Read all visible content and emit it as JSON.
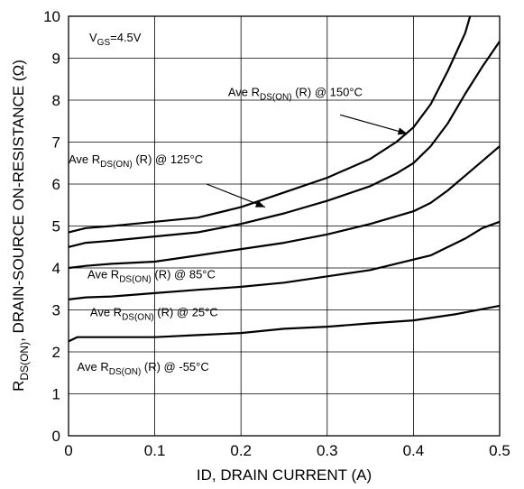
{
  "chart_data": {
    "type": "line",
    "xlabel": "ID, DRAIN CURRENT (A)",
    "ylabel": {
      "prefix": "R",
      "sub": "DS(ON)",
      "rest": ", DRAIN-SOURCE ON-RESISTANCE (Ω)"
    },
    "xlim": [
      0,
      0.5
    ],
    "ylim": [
      0,
      10
    ],
    "xticks": [
      "0",
      "0.1",
      "0.2",
      "0.3",
      "0.4",
      "0.5"
    ],
    "yticks": [
      "0",
      "1",
      "2",
      "3",
      "4",
      "5",
      "6",
      "7",
      "8",
      "9",
      "10"
    ],
    "grid": true,
    "condition": {
      "main": "V",
      "sub": "GS",
      "rest": "=4.5V"
    },
    "series": [
      {
        "name": "Ave RDS(ON) (R) @ 150°C",
        "label": {
          "pre": "Ave R",
          "sub": "DS(ON)",
          "post": " (R) @ 150°C"
        },
        "x": [
          0,
          0.02,
          0.05,
          0.1,
          0.15,
          0.2,
          0.25,
          0.3,
          0.35,
          0.38,
          0.4,
          0.42,
          0.44,
          0.46,
          0.47
        ],
        "y": [
          4.85,
          4.95,
          5.0,
          5.1,
          5.2,
          5.45,
          5.8,
          6.15,
          6.6,
          7.0,
          7.35,
          7.9,
          8.7,
          9.6,
          10.3
        ]
      },
      {
        "name": "Ave RDS(ON) (R) @ 125°C",
        "label": {
          "pre": "Ave R",
          "sub": "DS(ON)",
          "post": " (R) @ 125°C"
        },
        "x": [
          0,
          0.02,
          0.05,
          0.1,
          0.15,
          0.2,
          0.25,
          0.3,
          0.35,
          0.38,
          0.4,
          0.42,
          0.44,
          0.46,
          0.48,
          0.5
        ],
        "y": [
          4.5,
          4.6,
          4.65,
          4.75,
          4.85,
          5.05,
          5.3,
          5.6,
          5.95,
          6.25,
          6.5,
          6.9,
          7.45,
          8.15,
          8.8,
          9.4
        ]
      },
      {
        "name": "Ave RDS(ON) (R) @ 85°C",
        "label": {
          "pre": "Ave R",
          "sub": "DS(ON)",
          "post": " (R) @ 85°C"
        },
        "x": [
          0,
          0.02,
          0.05,
          0.1,
          0.15,
          0.2,
          0.25,
          0.3,
          0.35,
          0.4,
          0.42,
          0.44,
          0.46,
          0.48,
          0.5
        ],
        "y": [
          4.0,
          4.05,
          4.1,
          4.15,
          4.3,
          4.45,
          4.6,
          4.8,
          5.05,
          5.35,
          5.55,
          5.85,
          6.2,
          6.55,
          6.9
        ]
      },
      {
        "name": "Ave RDS(ON) (R) @ 25°C",
        "label": {
          "pre": "Ave R",
          "sub": "DS(ON)",
          "post": " (R) @ 25°C"
        },
        "x": [
          0,
          0.02,
          0.05,
          0.1,
          0.15,
          0.2,
          0.25,
          0.3,
          0.35,
          0.4,
          0.42,
          0.44,
          0.46,
          0.48,
          0.5
        ],
        "y": [
          3.25,
          3.3,
          3.32,
          3.4,
          3.48,
          3.55,
          3.65,
          3.8,
          3.95,
          4.2,
          4.3,
          4.5,
          4.7,
          4.95,
          5.1
        ]
      },
      {
        "name": "Ave RDS(ON) (R) @ -55°C",
        "label": {
          "pre": "Ave R",
          "sub": "DS(ON)",
          "post": " (R) @ -55°C"
        },
        "x": [
          0,
          0.01,
          0.05,
          0.1,
          0.15,
          0.2,
          0.25,
          0.3,
          0.35,
          0.4,
          0.45,
          0.5
        ],
        "y": [
          2.25,
          2.35,
          2.35,
          2.35,
          2.4,
          2.45,
          2.55,
          2.6,
          2.68,
          2.75,
          2.9,
          3.1
        ]
      }
    ]
  }
}
